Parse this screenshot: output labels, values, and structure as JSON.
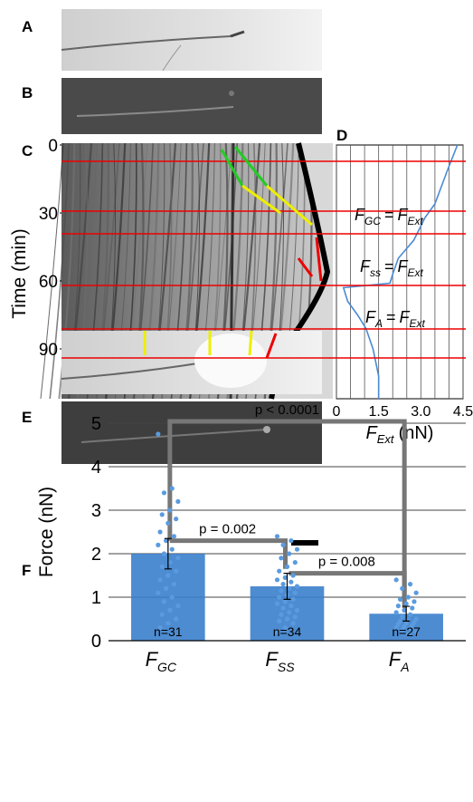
{
  "panel_labels": [
    "A",
    "B",
    "C",
    "D",
    "E",
    "F"
  ],
  "time_axis": {
    "label": "Time (min)",
    "lim": [
      0,
      112
    ],
    "ticks": [
      0,
      30,
      60,
      90
    ]
  },
  "panel_d": {
    "type": "line",
    "xlim": [
      0,
      4.5
    ],
    "xticks": [
      0,
      1.5,
      {
        "value": 3,
        "label": "3.0"
      },
      4.5
    ],
    "xgrid": [
      0,
      0.5,
      1,
      1.5,
      2,
      2.5,
      3,
      3.5,
      4,
      4.5
    ],
    "x_label": {
      "main": "F",
      "sub": "Ext",
      "unit": "(nN)"
    },
    "series": [
      {
        "color": "#4a8ad4",
        "values": [
          4.3,
          3.95,
          3.5,
          3.15,
          2.75,
          2.2,
          2.0,
          1.9,
          0.25,
          0.4,
          0.75,
          1.05,
          1.3,
          1.5,
          1.5
        ],
        "time": [
          0,
          11,
          26,
          32,
          42,
          50,
          57,
          61,
          63,
          69,
          75,
          81,
          90,
          102,
          112
        ]
      }
    ],
    "equations": [
      {
        "lhs": "F",
        "lhs_sub": "GC",
        "op": "=",
        "rhs": "F",
        "rhs_sub": "Ext"
      },
      {
        "lhs": "F",
        "lhs_sub": "ss",
        "op": "=",
        "rhs": "F",
        "rhs_sub": "Ext"
      },
      {
        "lhs": "F",
        "lhs_sub": "A",
        "op": "=",
        "rhs": "F",
        "rhs_sub": "Ext"
      }
    ]
  },
  "panel_f": {
    "type": "bar",
    "y_label": "Force (nN)",
    "ylim": [
      0,
      5
    ],
    "yticks": [
      0,
      1,
      2,
      3,
      4,
      5
    ],
    "grid": true,
    "color": "#3b7fcc",
    "categories": [
      {
        "main": "F",
        "sub": "GC"
      },
      {
        "main": "F",
        "sub": "SS"
      },
      {
        "main": "F",
        "sub": "A"
      }
    ],
    "values": [
      2.0,
      1.25,
      0.62
    ],
    "errors": [
      0.35,
      0.3,
      0.17
    ],
    "n_labels": [
      "n=31",
      "n=34",
      "n=27"
    ],
    "points": [
      [
        4.75,
        3.5,
        3.4,
        3.2,
        3.0,
        2.9,
        2.8,
        2.7,
        2.5,
        2.4,
        2.3,
        2.2,
        2.1,
        2.0,
        1.9,
        1.8,
        1.7,
        1.6,
        1.5,
        1.4,
        1.3,
        1.2,
        1.1,
        1.0,
        0.9,
        0.8,
        0.7,
        0.6,
        0.5,
        0.4,
        0.3
      ],
      [
        2.4,
        2.3,
        2.2,
        2.1,
        2.0,
        1.9,
        1.8,
        1.7,
        1.6,
        1.5,
        1.45,
        1.4,
        1.35,
        1.3,
        1.25,
        1.2,
        1.15,
        1.1,
        1.05,
        1.0,
        0.95,
        0.9,
        0.85,
        0.8,
        0.75,
        0.7,
        0.65,
        0.6,
        0.55,
        0.5,
        0.45,
        0.4,
        0.3,
        0.2
      ],
      [
        1.4,
        1.3,
        1.2,
        1.1,
        1.0,
        0.95,
        0.9,
        0.85,
        0.8,
        0.75,
        0.7,
        0.65,
        0.6,
        0.55,
        0.5,
        0.48,
        0.45,
        0.42,
        0.4,
        0.38,
        0.35,
        0.32,
        0.3,
        0.28,
        0.25,
        0.2,
        0.15
      ]
    ],
    "comparisons": [
      "p < 0.0001",
      "p = 0.002",
      "p = 0.008"
    ]
  }
}
